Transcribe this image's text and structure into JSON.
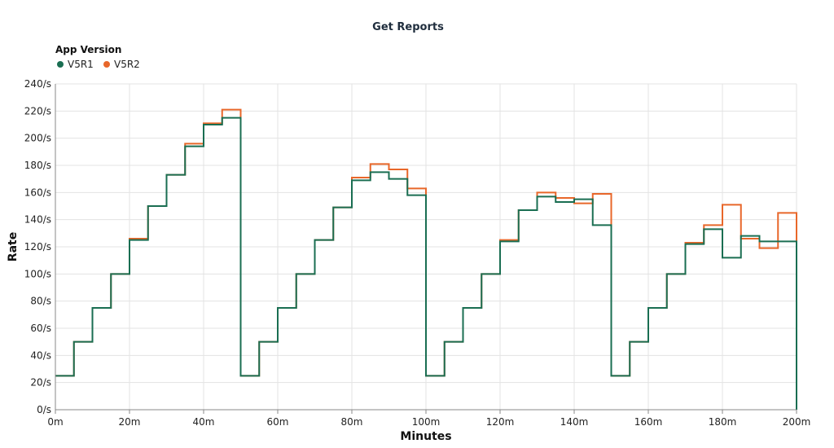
{
  "chart_data": {
    "type": "line",
    "step": true,
    "title": "Get Reports",
    "xlabel": "Minutes",
    "ylabel": "Rate",
    "xlim": [
      0,
      200
    ],
    "ylim": [
      0,
      240
    ],
    "x_ticks": [
      0,
      20,
      40,
      60,
      80,
      100,
      120,
      140,
      160,
      180,
      200
    ],
    "x_tick_labels": [
      "0m",
      "20m",
      "40m",
      "60m",
      "80m",
      "100m",
      "120m",
      "140m",
      "160m",
      "180m",
      "200m"
    ],
    "y_ticks": [
      0,
      20,
      40,
      60,
      80,
      100,
      120,
      140,
      160,
      180,
      200,
      220,
      240
    ],
    "y_tick_labels": [
      "0/s",
      "20/s",
      "40/s",
      "60/s",
      "80/s",
      "100/s",
      "120/s",
      "140/s",
      "160/s",
      "180/s",
      "200/s",
      "220/s",
      "240/s"
    ],
    "grid": true,
    "legend": {
      "title": "App Version",
      "placement": "top-left"
    },
    "x": [
      0,
      5,
      10,
      15,
      20,
      25,
      30,
      35,
      40,
      45,
      50,
      55,
      60,
      65,
      70,
      75,
      80,
      85,
      90,
      95,
      100,
      105,
      110,
      115,
      120,
      125,
      130,
      135,
      140,
      145,
      150,
      155,
      160,
      165,
      170,
      175,
      180,
      185,
      190,
      195,
      200
    ],
    "series": [
      {
        "name": "V5R2",
        "color": "#e8672a",
        "values": [
          25,
          50,
          75,
          100,
          126,
          150,
          173,
          196,
          211,
          221,
          25,
          50,
          75,
          100,
          125,
          149,
          171,
          181,
          177,
          163,
          25,
          50,
          75,
          100,
          125,
          147,
          160,
          156,
          152,
          159,
          25,
          50,
          75,
          100,
          123,
          136,
          151,
          126,
          119,
          145,
          124
        ]
      },
      {
        "name": "V5R1",
        "color": "#1a6e52",
        "values": [
          25,
          50,
          75,
          100,
          125,
          150,
          173,
          194,
          210,
          215,
          25,
          50,
          75,
          100,
          125,
          149,
          169,
          175,
          170,
          158,
          25,
          50,
          75,
          100,
          124,
          147,
          157,
          153,
          155,
          136,
          25,
          50,
          75,
          100,
          122,
          133,
          112,
          128,
          124,
          124,
          0
        ]
      }
    ]
  }
}
